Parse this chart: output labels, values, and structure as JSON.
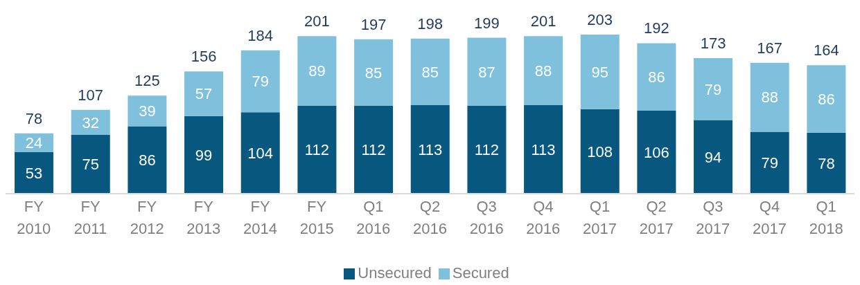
{
  "chart_data": {
    "type": "bar",
    "stacked": true,
    "data_labels": true,
    "legend": "bottom",
    "categories": [
      "FY 2010",
      "FY 2011",
      "FY 2012",
      "FY 2013",
      "FY 2014",
      "FY 2015",
      "Q1 2016",
      "Q2 2016",
      "Q3 2016",
      "Q4 2016",
      "Q1 2017",
      "Q2 2017",
      "Q3 2017",
      "Q4 2017",
      "Q1 2018"
    ],
    "series": [
      {
        "name": "Unsecured",
        "color": "#08577f",
        "values": [
          53,
          75,
          86,
          99,
          104,
          112,
          112,
          113,
          112,
          113,
          108,
          106,
          94,
          79,
          78
        ]
      },
      {
        "name": "Secured",
        "color": "#7fc1dd",
        "values": [
          24,
          32,
          39,
          57,
          79,
          89,
          85,
          85,
          87,
          88,
          95,
          86,
          79,
          88,
          86
        ]
      }
    ],
    "totals": [
      "78",
      "107",
      "125",
      "156",
      "184",
      "201",
      "197",
      "198",
      "199",
      "201",
      "203",
      "192",
      "173",
      "167",
      "164"
    ]
  }
}
